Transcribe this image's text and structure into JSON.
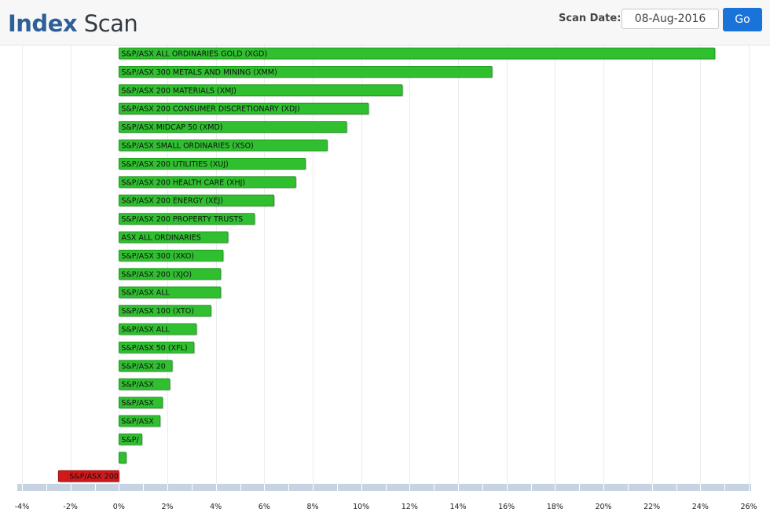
{
  "header": {
    "title_part1": "Index",
    "title_part2": "Scan",
    "scan_date_label": "Scan Date:",
    "scan_date_value": "08-Aug-2016",
    "go_label": "Go"
  },
  "colors": {
    "positive": "#2fbf2f",
    "negative": "#d11919",
    "axis_band": "#c5d3e3",
    "title_accent": "#2f5f99",
    "button": "#1a73d8"
  },
  "chart_data": {
    "type": "bar",
    "orientation": "horizontal",
    "categories": [
      "S&P/ASX ALL ORDINARIES GOLD (XGD)",
      "S&P/ASX 300 METALS AND MINING (XMM)",
      "S&P/ASX 200 MATERIALS (XMJ)",
      "S&P/ASX 200 CONSUMER DISCRETIONARY (XDJ)",
      "S&P/ASX MIDCAP 50 (XMD)",
      "S&P/ASX SMALL ORDINARIES (XSO)",
      "S&P/ASX 200 UTILITIES (XUJ)",
      "S&P/ASX 200 HEALTH CARE (XHJ)",
      "S&P/ASX 200 ENERGY (XEJ)",
      "S&P/ASX 200 PROPERTY TRUSTS",
      "ASX ALL ORDINARIES",
      "S&P/ASX 300 (XKO)",
      "S&P/ASX 200 (XJO)",
      "S&P/ASX ALL",
      "S&P/ASX 100 (XTO)",
      "S&P/ASX ALL",
      "S&P/ASX 50 (XFL)",
      "S&P/ASX 20",
      "S&P/ASX",
      "S&P/ASX",
      "S&P/ASX",
      "S&P/",
      "",
      "S&P/ASX 200"
    ],
    "values": [
      24.6,
      15.4,
      11.7,
      10.3,
      9.4,
      8.6,
      7.7,
      7.3,
      6.4,
      5.6,
      4.5,
      4.3,
      4.2,
      4.2,
      3.8,
      3.2,
      3.1,
      2.2,
      2.1,
      1.8,
      1.7,
      0.95,
      0.3,
      -2.5
    ],
    "xlim": [
      -4,
      26
    ],
    "xticks": [
      "-4%",
      "-2%",
      "0%",
      "2%",
      "4%",
      "6%",
      "8%",
      "10%",
      "12%",
      "14%",
      "16%",
      "18%",
      "20%",
      "22%",
      "24%",
      "26%"
    ],
    "grid": true
  }
}
